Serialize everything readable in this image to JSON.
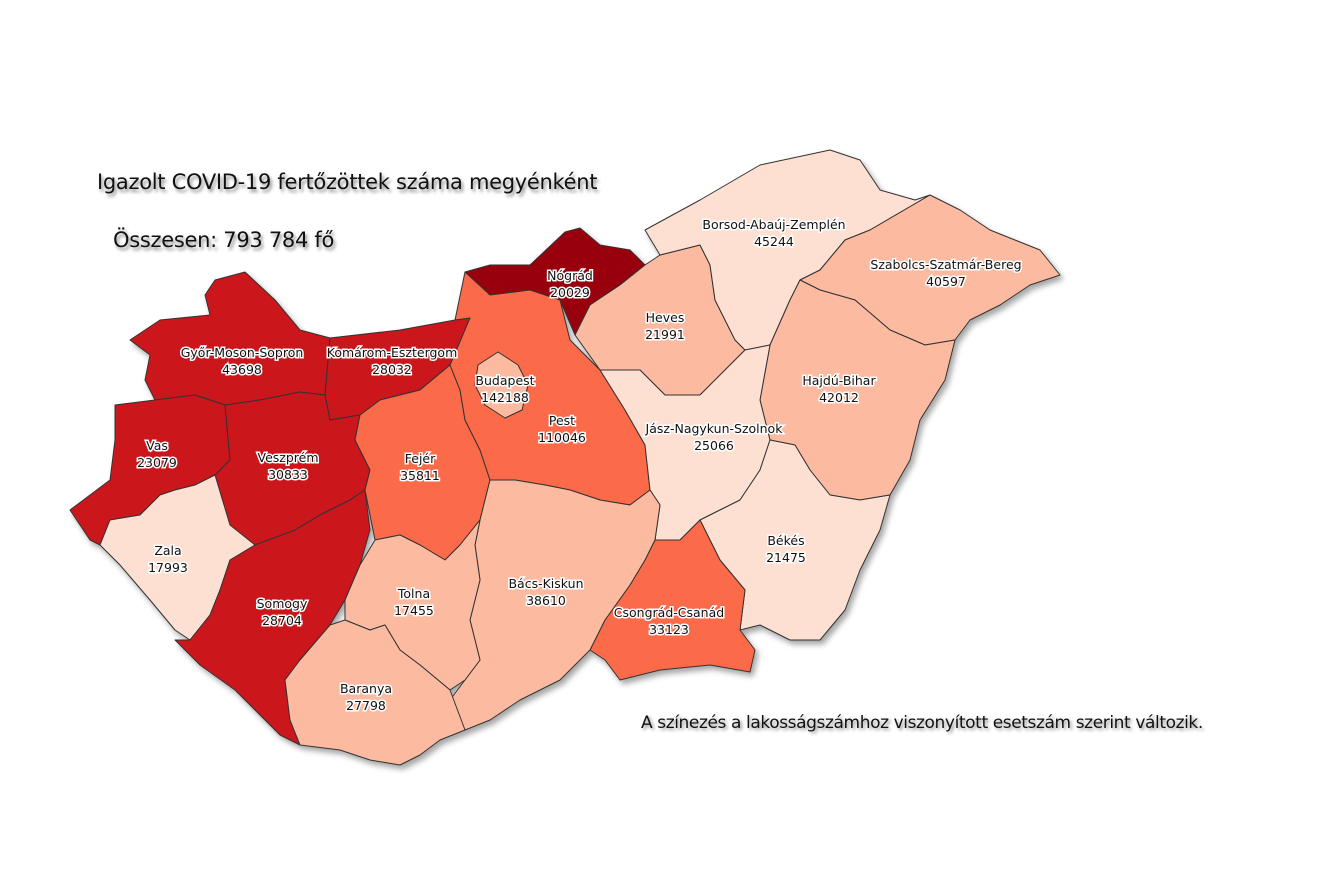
{
  "title": "Igazolt COVID-19 fertőzöttek száma megyénként",
  "total": "Összesen: 793 784 fő",
  "note": "A színezés a lakosságszámhoz viszonyított esetszám szerint változik.",
  "palette": [
    "#fee0d2",
    "#fcbba1",
    "#fb6a4a",
    "#cb181d",
    "#99000d"
  ],
  "counties": [
    {
      "name": "Győr-Moson-Sopron",
      "cases": "43698",
      "color": "#cb181d"
    },
    {
      "name": "Komárom-Esztergom",
      "cases": "28032",
      "color": "#cb181d"
    },
    {
      "name": "Vas",
      "cases": "23079",
      "color": "#cb181d"
    },
    {
      "name": "Veszprém",
      "cases": "30833",
      "color": "#cb181d"
    },
    {
      "name": "Zala",
      "cases": "17993",
      "color": "#fee0d2"
    },
    {
      "name": "Somogy",
      "cases": "28704",
      "color": "#cb181d"
    },
    {
      "name": "Fejér",
      "cases": "35811",
      "color": "#fb6a4a"
    },
    {
      "name": "Pest",
      "cases": "110046",
      "color": "#fb6a4a"
    },
    {
      "name": "Budapest",
      "cases": "142188",
      "color": "#fcbba1"
    },
    {
      "name": "Nógrád",
      "cases": "20029",
      "color": "#99000d"
    },
    {
      "name": "Heves",
      "cases": "21991",
      "color": "#fcbba1"
    },
    {
      "name": "Borsod-Abaúj-Zemplén",
      "cases": "45244",
      "color": "#fee0d2"
    },
    {
      "name": "Szabolcs-Szatmár-Bereg",
      "cases": "40597",
      "color": "#fcbba1"
    },
    {
      "name": "Hajdú-Bihar",
      "cases": "42012",
      "color": "#fcbba1"
    },
    {
      "name": "Jász-Nagykun-Szolnok",
      "cases": "25066",
      "color": "#fee0d2"
    },
    {
      "name": "Békés",
      "cases": "21475",
      "color": "#fee0d2"
    },
    {
      "name": "Csongrád-Csanád",
      "cases": "33123",
      "color": "#fb6a4a"
    },
    {
      "name": "Bács-Kiskun",
      "cases": "38610",
      "color": "#fcbba1"
    },
    {
      "name": "Tolna",
      "cases": "17455",
      "color": "#fcbba1"
    },
    {
      "name": "Baranya",
      "cases": "27798",
      "color": "#fcbba1"
    }
  ]
}
